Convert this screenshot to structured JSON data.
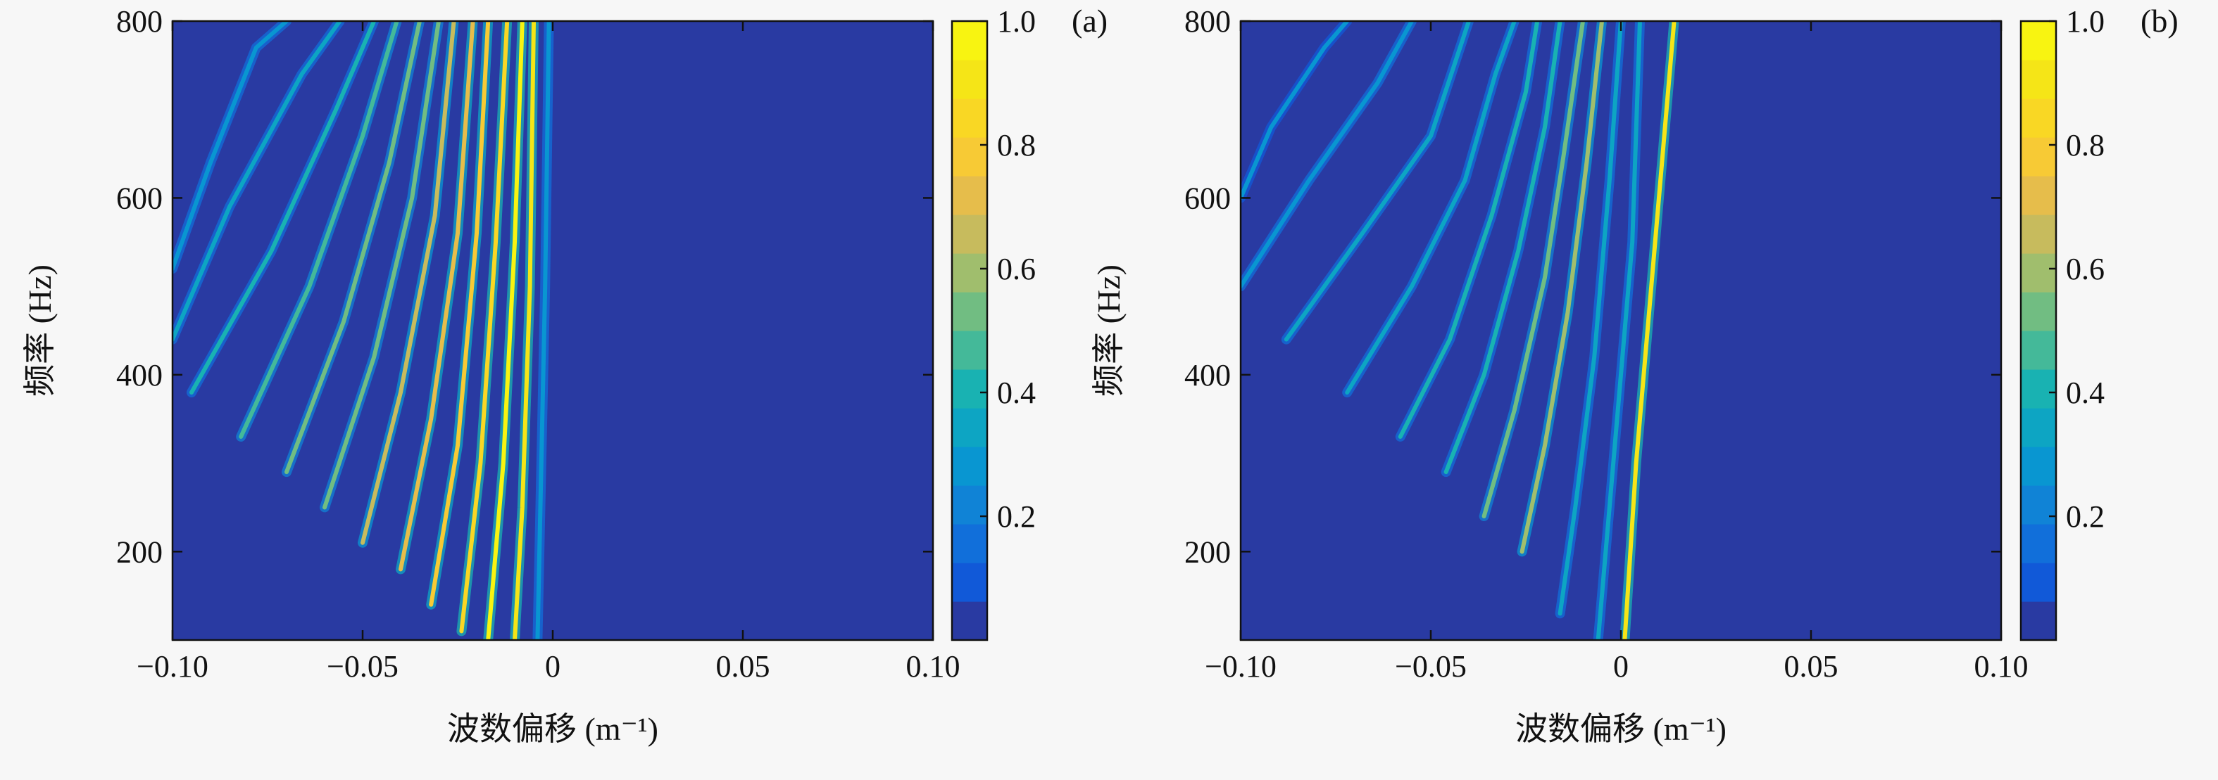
{
  "chart_data": [
    {
      "type": "heatmap",
      "panel_label": "(a)",
      "xlabel": "波数偏移 (m⁻¹)",
      "ylabel": "频率 (Hz)",
      "xlim": [
        -0.1,
        0.1
      ],
      "ylim": [
        100,
        800
      ],
      "x_ticks": [
        -0.1,
        -0.05,
        0,
        0.05,
        0.1
      ],
      "x_tick_labels": [
        "−0.10",
        "−0.05",
        "0",
        "0.05",
        "0.10"
      ],
      "y_ticks": [
        200,
        400,
        600,
        800
      ],
      "y_tick_labels": [
        "200",
        "400",
        "600",
        "800"
      ],
      "colorbar": {
        "range": [
          0,
          1
        ],
        "ticks": [
          0.2,
          0.4,
          0.6,
          0.8,
          1.0
        ],
        "tick_labels": [
          "0.2",
          "0.4",
          "0.6",
          "0.8",
          "1.0"
        ],
        "colormap": "parula",
        "levels": 16
      },
      "background_value": 0.02,
      "ridges": [
        {
          "points": [
            [
              -0.004,
              100
            ],
            [
              -0.003,
              300
            ],
            [
              -0.002,
              500
            ],
            [
              -0.001,
              800
            ]
          ],
          "peak": 0.3
        },
        {
          "points": [
            [
              -0.01,
              100
            ],
            [
              -0.008,
              250
            ],
            [
              -0.006,
              500
            ],
            [
              -0.005,
              800
            ]
          ],
          "peak": 0.9
        },
        {
          "points": [
            [
              -0.017,
              100
            ],
            [
              -0.013,
              300
            ],
            [
              -0.01,
              550
            ],
            [
              -0.008,
              800
            ]
          ],
          "peak": 0.95
        },
        {
          "points": [
            [
              -0.024,
              110
            ],
            [
              -0.019,
              300
            ],
            [
              -0.015,
              550
            ],
            [
              -0.012,
              800
            ]
          ],
          "peak": 0.85
        },
        {
          "points": [
            [
              -0.032,
              140
            ],
            [
              -0.025,
              320
            ],
            [
              -0.02,
              560
            ],
            [
              -0.017,
              800
            ]
          ],
          "peak": 0.75
        },
        {
          "points": [
            [
              -0.04,
              180
            ],
            [
              -0.032,
              350
            ],
            [
              -0.025,
              560
            ],
            [
              -0.021,
              800
            ]
          ],
          "peak": 0.7
        },
        {
          "points": [
            [
              -0.05,
              210
            ],
            [
              -0.04,
              380
            ],
            [
              -0.031,
              580
            ],
            [
              -0.026,
              800
            ]
          ],
          "peak": 0.65
        },
        {
          "points": [
            [
              -0.06,
              250
            ],
            [
              -0.047,
              420
            ],
            [
              -0.037,
              600
            ],
            [
              -0.03,
              800
            ]
          ],
          "peak": 0.55
        },
        {
          "points": [
            [
              -0.07,
              290
            ],
            [
              -0.055,
              460
            ],
            [
              -0.043,
              640
            ],
            [
              -0.035,
              800
            ]
          ],
          "peak": 0.5
        },
        {
          "points": [
            [
              -0.082,
              330
            ],
            [
              -0.064,
              500
            ],
            [
              -0.05,
              670
            ],
            [
              -0.041,
              800
            ]
          ],
          "peak": 0.45
        },
        {
          "points": [
            [
              -0.095,
              380
            ],
            [
              -0.074,
              540
            ],
            [
              -0.057,
              700
            ],
            [
              -0.047,
              800
            ]
          ],
          "peak": 0.4
        },
        {
          "points": [
            [
              -0.1,
              440
            ],
            [
              -0.085,
              590
            ],
            [
              -0.066,
              740
            ],
            [
              -0.056,
              800
            ]
          ],
          "peak": 0.35
        },
        {
          "points": [
            [
              -0.1,
              520
            ],
            [
              -0.09,
              640
            ],
            [
              -0.078,
              770
            ],
            [
              -0.07,
              800
            ]
          ],
          "peak": 0.3
        }
      ]
    },
    {
      "type": "heatmap",
      "panel_label": "(b)",
      "xlabel": "波数偏移 (m⁻¹)",
      "ylabel": "频率 (Hz)",
      "xlim": [
        -0.1,
        0.1
      ],
      "ylim": [
        100,
        800
      ],
      "x_ticks": [
        -0.1,
        -0.05,
        0,
        0.05,
        0.1
      ],
      "x_tick_labels": [
        "−0.10",
        "−0.05",
        "0",
        "0.05",
        "0.10"
      ],
      "y_ticks": [
        200,
        400,
        600,
        800
      ],
      "y_tick_labels": [
        "200",
        "400",
        "600",
        "800"
      ],
      "colorbar": {
        "range": [
          0,
          1
        ],
        "ticks": [
          0.2,
          0.4,
          0.6,
          0.8,
          1.0
        ],
        "tick_labels": [
          "0.2",
          "0.4",
          "0.6",
          "0.8",
          "1.0"
        ],
        "colormap": "parula",
        "levels": 16
      },
      "background_value": 0.02,
      "ridges": [
        {
          "points": [
            [
              0.001,
              100
            ],
            [
              0.004,
              300
            ],
            [
              0.008,
              500
            ],
            [
              0.011,
              650
            ],
            [
              0.014,
              800
            ]
          ],
          "peak": 0.9
        },
        {
          "points": [
            [
              -0.006,
              100
            ],
            [
              -0.004,
              200
            ],
            [
              -0.001,
              350
            ],
            [
              0.003,
              550
            ],
            [
              0.005,
              800
            ]
          ],
          "peak": 0.35
        },
        {
          "points": [
            [
              -0.016,
              130
            ],
            [
              -0.012,
              250
            ],
            [
              -0.007,
              420
            ],
            [
              -0.003,
              620
            ],
            [
              0.0,
              800
            ]
          ],
          "peak": 0.35
        },
        {
          "points": [
            [
              -0.026,
              200
            ],
            [
              -0.02,
              320
            ],
            [
              -0.014,
              470
            ],
            [
              -0.009,
              640
            ],
            [
              -0.005,
              800
            ]
          ],
          "peak": 0.6
        },
        {
          "points": [
            [
              -0.036,
              240
            ],
            [
              -0.028,
              360
            ],
            [
              -0.02,
              510
            ],
            [
              -0.015,
              650
            ],
            [
              -0.01,
              800
            ]
          ],
          "peak": 0.5
        },
        {
          "points": [
            [
              -0.046,
              290
            ],
            [
              -0.036,
              400
            ],
            [
              -0.027,
              540
            ],
            [
              -0.02,
              680
            ],
            [
              -0.016,
              800
            ]
          ],
          "peak": 0.4
        },
        {
          "points": [
            [
              -0.058,
              330
            ],
            [
              -0.045,
              440
            ],
            [
              -0.034,
              580
            ],
            [
              -0.025,
              720
            ],
            [
              -0.022,
              800
            ]
          ],
          "peak": 0.38
        },
        {
          "points": [
            [
              -0.072,
              380
            ],
            [
              -0.055,
              500
            ],
            [
              -0.041,
              620
            ],
            [
              -0.033,
              740
            ],
            [
              -0.028,
              800
            ]
          ],
          "peak": 0.35
        },
        {
          "points": [
            [
              -0.088,
              440
            ],
            [
              -0.068,
              560
            ],
            [
              -0.05,
              670
            ],
            [
              -0.04,
              800
            ]
          ],
          "peak": 0.32
        },
        {
          "points": [
            [
              -0.1,
              500
            ],
            [
              -0.082,
              620
            ],
            [
              -0.064,
              730
            ],
            [
              -0.055,
              800
            ]
          ],
          "peak": 0.28
        },
        {
          "points": [
            [
              -0.1,
              600
            ],
            [
              -0.092,
              680
            ],
            [
              -0.078,
              770
            ],
            [
              -0.072,
              800
            ]
          ],
          "peak": 0.25
        }
      ]
    }
  ]
}
